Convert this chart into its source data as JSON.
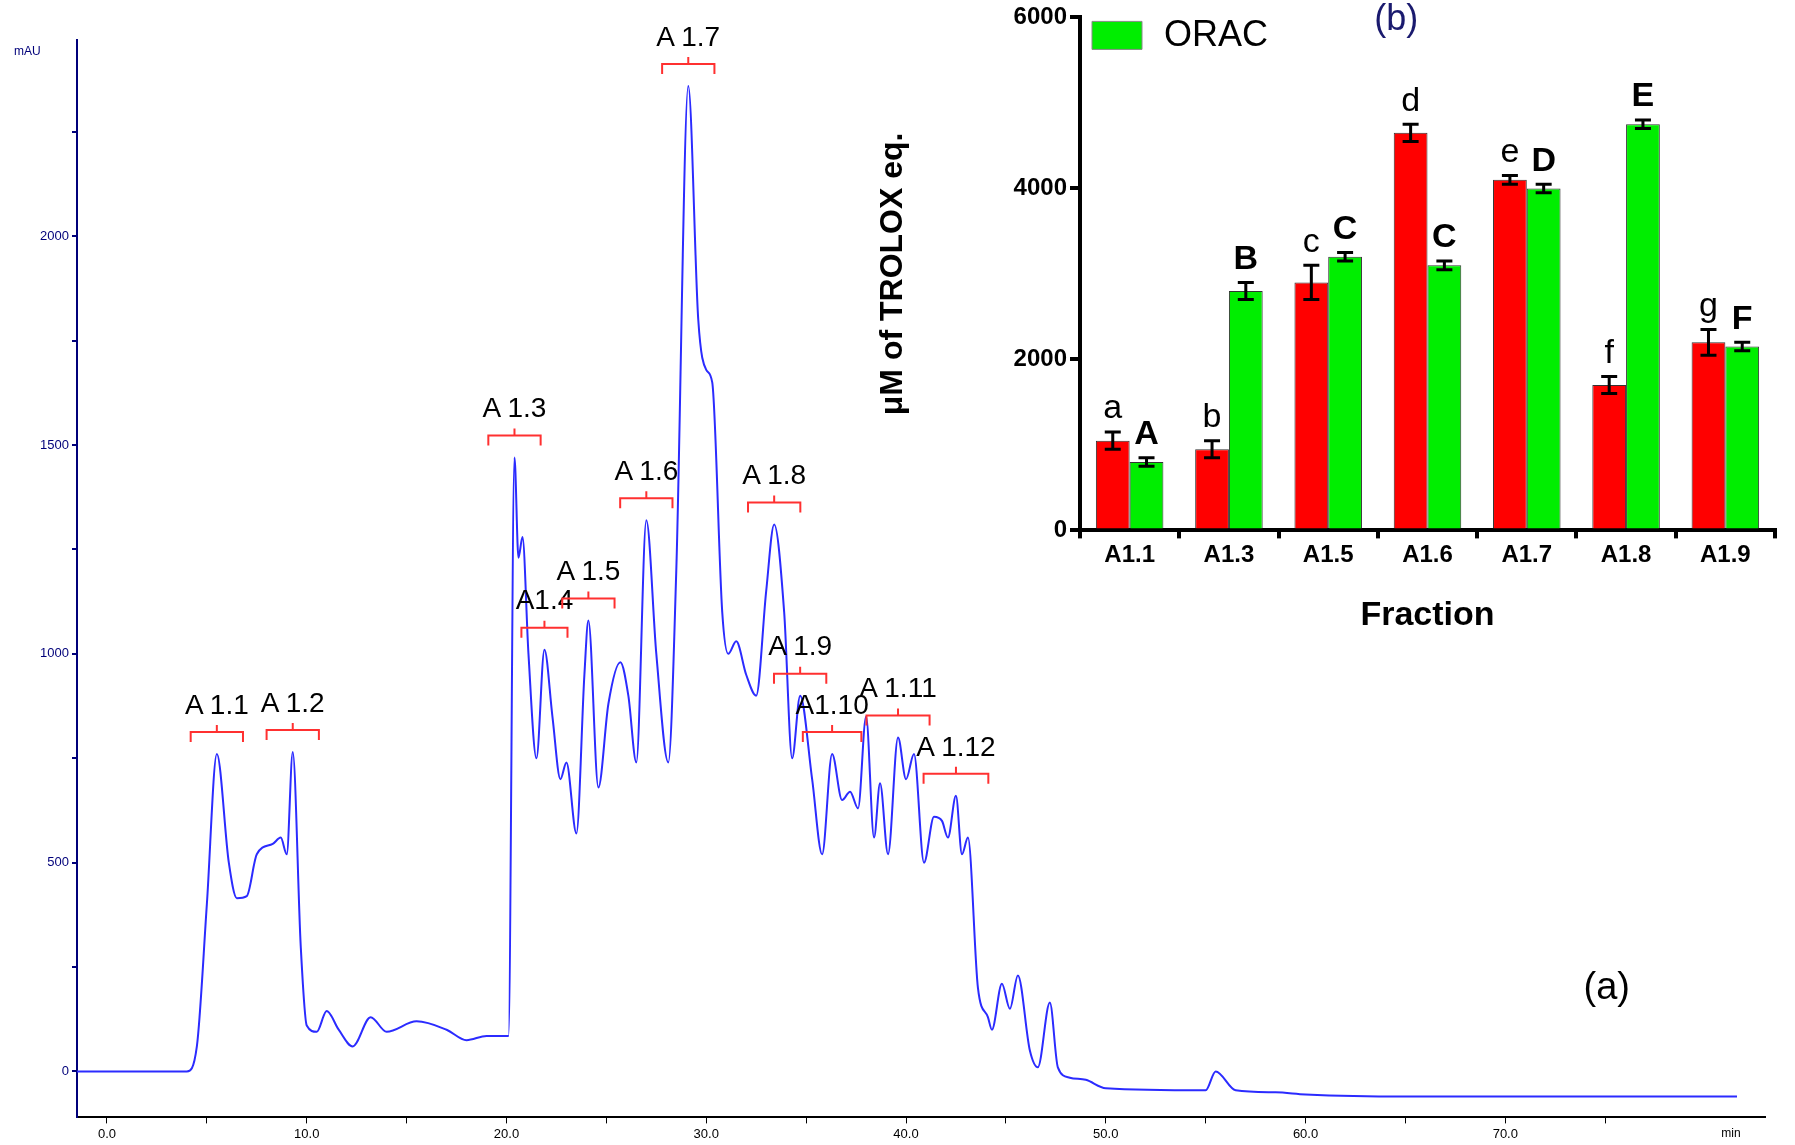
{
  "chart_data": [
    {
      "type": "line",
      "ylabel": "mAU",
      "xlabel": "min",
      "xlim": [
        -1.5,
        83
      ],
      "ylim": [
        -110,
        2470
      ],
      "xticks": [
        {
          "value": 0,
          "label": "0.0"
        },
        {
          "value": 5,
          "label": null
        },
        {
          "value": 10,
          "label": "10.0"
        },
        {
          "value": 15,
          "label": null
        },
        {
          "value": 20,
          "label": "20.0"
        },
        {
          "value": 25,
          "label": null
        },
        {
          "value": 30,
          "label": "30.0"
        },
        {
          "value": 35,
          "label": null
        },
        {
          "value": 40,
          "label": "40.0"
        },
        {
          "value": 45,
          "label": null
        },
        {
          "value": 50,
          "label": "50.0"
        },
        {
          "value": 55,
          "label": null
        },
        {
          "value": 60,
          "label": "60.0"
        },
        {
          "value": 65,
          "label": null
        },
        {
          "value": 70,
          "label": "70.0"
        },
        {
          "value": 75,
          "label": null
        }
      ],
      "yticks": [
        0,
        {
          "value": 250,
          "label": null
        },
        500,
        {
          "value": 750,
          "label": null
        },
        1000,
        {
          "value": 1250,
          "label": null
        },
        1500,
        {
          "value": 1750,
          "label": null
        },
        2000,
        {
          "value": 2250,
          "label": null
        }
      ],
      "grid": false,
      "marker": "none",
      "series": [
        {
          "color": "#2b2bff",
          "x": [
            -1.5,
            0,
            4,
            4.5,
            5,
            5.5,
            6.1,
            6.5,
            7,
            7.5,
            8.3,
            8.7,
            9,
            9.3,
            9.7,
            10,
            10.5,
            11,
            11.6,
            12.3,
            13.2,
            14,
            15.5,
            17,
            18,
            19,
            20.1,
            20.4,
            20.6,
            20.8,
            21.1,
            21.5,
            21.9,
            22.3,
            22.7,
            23,
            23.5,
            23.9,
            24.1,
            24.6,
            25.1,
            25.7,
            26.1,
            26.5,
            27,
            27.5,
            28.1,
            28.5,
            29.1,
            29.6,
            30,
            30.3,
            30.8,
            31.1,
            31.5,
            32,
            32.5,
            33,
            33.4,
            33.9,
            34.3,
            34.7,
            35.3,
            35.8,
            36.3,
            36.8,
            37.2,
            37.6,
            38,
            38.4,
            38.7,
            39.1,
            39.6,
            40,
            40.4,
            40.9,
            41.4,
            41.8,
            42.1,
            42.5,
            42.8,
            43.1,
            43.6,
            44.1,
            44.3,
            44.8,
            45.2,
            45.6,
            46.2,
            46.6,
            47.2,
            47.6,
            48.2,
            49,
            50,
            55,
            55.5,
            56.5,
            58.5,
            60,
            65,
            70,
            81.6
          ],
          "values": [
            0,
            0,
            0,
            60,
            400,
            760,
            500,
            415,
            420,
            520,
            545,
            560,
            520,
            765,
            300,
            110,
            95,
            145,
            100,
            60,
            130,
            95,
            120,
            100,
            75,
            85,
            85,
            1470,
            1230,
            1280,
            1000,
            750,
            1010,
            850,
            700,
            740,
            570,
            950,
            1080,
            680,
            880,
            980,
            900,
            740,
            1320,
            1000,
            740,
            1200,
            2360,
            1800,
            1680,
            1650,
            1100,
            1000,
            1030,
            950,
            900,
            1150,
            1310,
            1100,
            750,
            900,
            700,
            520,
            760,
            650,
            670,
            630,
            850,
            560,
            690,
            520,
            800,
            700,
            760,
            500,
            610,
            600,
            560,
            660,
            520,
            560,
            200,
            130,
            100,
            210,
            150,
            230,
            50,
            10,
            165,
            10,
            -15,
            -20,
            -40,
            -45,
            0,
            -45,
            -50,
            -55,
            -60,
            -60,
            -60
          ]
        }
      ],
      "annotations": [
        {
          "text": "A 1.1",
          "x": 5.5,
          "y": 760
        },
        {
          "text": "A 1.2",
          "x": 9.3,
          "y": 765
        },
        {
          "text": "A 1.3",
          "x": 20.4,
          "y": 1470
        },
        {
          "text": "A1.4",
          "x": 21.9,
          "y": 1010
        },
        {
          "text": "A 1.5",
          "x": 24.1,
          "y": 1080
        },
        {
          "text": "A 1.6",
          "x": 27,
          "y": 1320
        },
        {
          "text": "A 1.7",
          "x": 29.1,
          "y": 2360
        },
        {
          "text": "A 1.8",
          "x": 33.4,
          "y": 1310
        },
        {
          "text": "A 1.9",
          "x": 34.7,
          "y": 900
        },
        {
          "text": "A1.10",
          "x": 36.3,
          "y": 760
        },
        {
          "text": "A 1.11",
          "x": 39.6,
          "y": 800
        },
        {
          "text": "A 1.12",
          "x": 42.5,
          "y": 660
        },
        "(a)"
      ]
    },
    {
      "type": "bar",
      "title": "(b)",
      "xlabel": "Fraction",
      "ylabel": "μM of TROLOX eq.",
      "categories": [
        "A1.1",
        "A1.3",
        "A1.5",
        "A1.6",
        "A1.7",
        "A1.8",
        "A1.9"
      ],
      "ylim": [
        0,
        6000
      ],
      "yticks": [
        0,
        2000,
        4000,
        6000
      ],
      "grid": false,
      "legend": "top left",
      "series": [
        {
          "color": "#ff0000",
          "values": [
            1050,
            950,
            2900,
            4650,
            4100,
            1700,
            2200
          ],
          "errors": [
            100,
            100,
            200,
            100,
            50,
            100,
            150
          ],
          "value_labels": [
            "a",
            "b",
            "c",
            "d",
            "e",
            "f",
            "g"
          ]
        },
        {
          "name": "ORAC",
          "color": "#00ee00",
          "values": [
            800,
            2800,
            3200,
            3100,
            4000,
            4750,
            2150
          ],
          "errors": [
            50,
            100,
            50,
            50,
            50,
            50,
            50
          ],
          "value_labels": [
            "A",
            "B",
            "C",
            "C",
            "D",
            "E",
            "F"
          ]
        }
      ]
    }
  ]
}
